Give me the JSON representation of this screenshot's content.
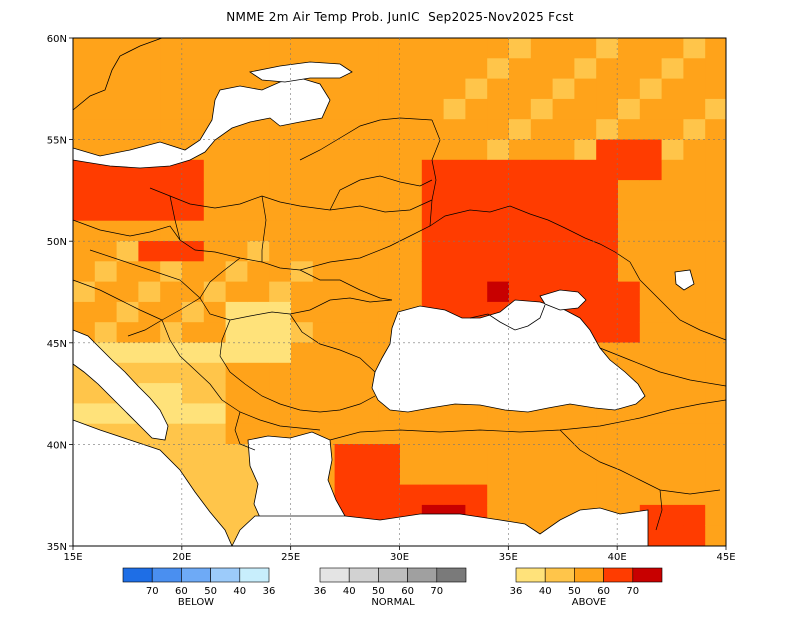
{
  "title": "NMME 2m Air Temp Prob. JunIC  Sep2025-Nov2025 Fcst",
  "map": {
    "lon_range": [
      15,
      45
    ],
    "lat_range": [
      35,
      60
    ],
    "x_ticks": [
      "15E",
      "20E",
      "25E",
      "30E",
      "35E",
      "40E",
      "45E"
    ],
    "y_ticks": [
      "35N",
      "40N",
      "45N",
      "50N",
      "55N",
      "60N"
    ]
  },
  "legend": {
    "below": {
      "title": "BELOW",
      "labels": [
        "70",
        "60",
        "50",
        "40",
        "36"
      ],
      "colors": [
        "#1e6ee6",
        "#4a8ff0",
        "#6eaaf6",
        "#9ccbfa",
        "#c8eefc"
      ]
    },
    "normal": {
      "title": "NORMAL",
      "labels": [
        "36",
        "40",
        "50",
        "60",
        "70"
      ],
      "colors": [
        "#e4e4e4",
        "#d2d2d2",
        "#bebebe",
        "#a0a0a0",
        "#7a7a7a"
      ]
    },
    "above": {
      "title": "ABOVE",
      "labels": [
        "36",
        "40",
        "50",
        "60",
        "70"
      ],
      "colors": [
        "#ffe27a",
        "#ffc54a",
        "#ffa31a",
        "#ff3c00",
        "#c80000"
      ]
    }
  }
}
